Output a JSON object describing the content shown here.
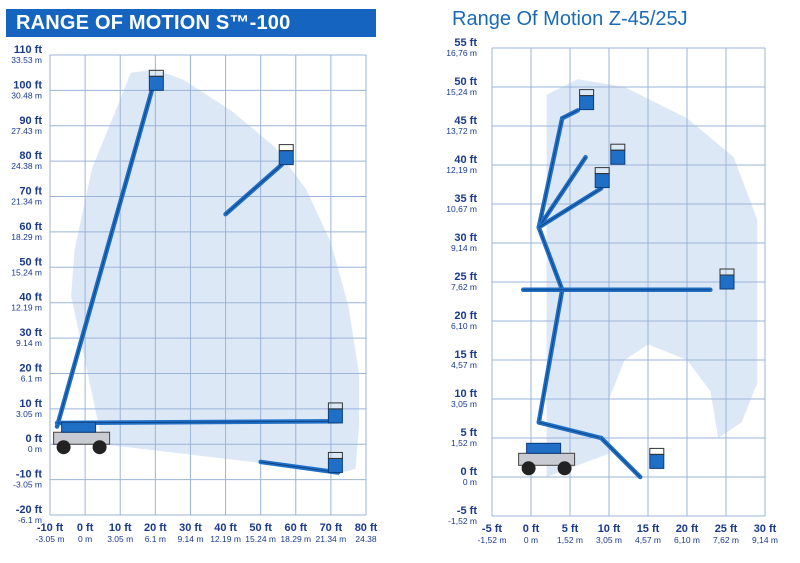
{
  "left_chart": {
    "title": "RANGE OF MOTION S™-100",
    "y_ticks": [
      {
        "ft": "110 ft",
        "m": "33.53 m"
      },
      {
        "ft": "100 ft",
        "m": "30.48 m"
      },
      {
        "ft": "90 ft",
        "m": "27.43 m"
      },
      {
        "ft": "80 ft",
        "m": "24.38 m"
      },
      {
        "ft": "70 ft",
        "m": "21.34 m"
      },
      {
        "ft": "60 ft",
        "m": "18.29 m"
      },
      {
        "ft": "50 ft",
        "m": "15.24 m"
      },
      {
        "ft": "40 ft",
        "m": "12.19 m"
      },
      {
        "ft": "30 ft",
        "m": "9.14 m"
      },
      {
        "ft": "20 ft",
        "m": "6.1 m"
      },
      {
        "ft": "10 ft",
        "m": "3.05 m"
      },
      {
        "ft": "0 ft",
        "m": "0 m"
      },
      {
        "ft": "-10 ft",
        "m": "-3.05 m"
      },
      {
        "ft": "-20 ft",
        "m": "-6.1 m"
      }
    ],
    "x_ticks": [
      {
        "ft": "-10 ft",
        "m": "-3.05 m"
      },
      {
        "ft": "0 ft",
        "m": "0 m"
      },
      {
        "ft": "10 ft",
        "m": "3.05 m"
      },
      {
        "ft": "20 ft",
        "m": "6.1 m"
      },
      {
        "ft": "30 ft",
        "m": "9.14 m"
      },
      {
        "ft": "40 ft",
        "m": "12.19 m"
      },
      {
        "ft": "50 ft",
        "m": "15.24 m"
      },
      {
        "ft": "60 ft",
        "m": "18.29 m"
      },
      {
        "ft": "70 ft",
        "m": "21.34 m"
      },
      {
        "ft": "80 ft",
        "m": "24.38"
      }
    ],
    "envelope_points_ft": [
      [
        5,
        0
      ],
      [
        -4,
        42
      ],
      [
        -3,
        55
      ],
      [
        2,
        78
      ],
      [
        9,
        95
      ],
      [
        13,
        105
      ],
      [
        20,
        106
      ],
      [
        28,
        103
      ],
      [
        42,
        94
      ],
      [
        54,
        84
      ],
      [
        63,
        72
      ],
      [
        70,
        57
      ],
      [
        75,
        39
      ],
      [
        78,
        20
      ],
      [
        78,
        5
      ],
      [
        77,
        -7
      ],
      [
        73,
        -8
      ]
    ],
    "booms_ft": [
      {
        "from": [
          -8,
          5
        ],
        "to": [
          19,
          100
        ]
      },
      {
        "from": [
          -8,
          6
        ],
        "to": [
          72,
          6.5
        ]
      },
      {
        "from": [
          50,
          -5
        ],
        "to": [
          72,
          -8
        ]
      },
      {
        "from": [
          40,
          65
        ],
        "to": [
          56,
          79
        ]
      }
    ],
    "platforms_ft": [
      [
        20,
        102
      ],
      [
        57,
        81
      ],
      [
        71,
        8
      ],
      [
        71,
        -6
      ]
    ],
    "colors": {
      "envelope": "#dde8f7",
      "boom": "#1f6fc6",
      "grid": "#9bb4d8",
      "axis_text": "#1a3a8c"
    }
  },
  "right_chart": {
    "title": "Range Of Motion Z-45/25J",
    "y_ticks": [
      {
        "ft": "55 ft",
        "m": "16,76 m"
      },
      {
        "ft": "50 ft",
        "m": "15,24 m"
      },
      {
        "ft": "45 ft",
        "m": "13,72 m"
      },
      {
        "ft": "40 ft",
        "m": "12,19 m"
      },
      {
        "ft": "35 ft",
        "m": "10,67 m"
      },
      {
        "ft": "30 ft",
        "m": "9,14 m"
      },
      {
        "ft": "25 ft",
        "m": "7,62 m"
      },
      {
        "ft": "20 ft",
        "m": "6,10 m"
      },
      {
        "ft": "15 ft",
        "m": "4,57 m"
      },
      {
        "ft": "10 ft",
        "m": "3,05 m"
      },
      {
        "ft": "5 ft",
        "m": "1,52 m"
      },
      {
        "ft": "0 ft",
        "m": "0 m"
      },
      {
        "ft": "-5 ft",
        "m": "-1,52 m"
      }
    ],
    "x_ticks": [
      {
        "ft": "-5 ft",
        "m": "-1,52 m"
      },
      {
        "ft": "0 ft",
        "m": "0 m"
      },
      {
        "ft": "5 ft",
        "m": "1,52 m"
      },
      {
        "ft": "10 ft",
        "m": "3,05 m"
      },
      {
        "ft": "15 ft",
        "m": "4,57 m"
      },
      {
        "ft": "20 ft",
        "m": "6,10 m"
      },
      {
        "ft": "25 ft",
        "m": "7,62 m"
      },
      {
        "ft": "30 ft",
        "m": "9,14 m"
      }
    ],
    "envelope_points_ft": [
      [
        2,
        0
      ],
      [
        2,
        49
      ],
      [
        6,
        51
      ],
      [
        12,
        50
      ],
      [
        20,
        46
      ],
      [
        26,
        41
      ],
      [
        29,
        33
      ],
      [
        29,
        12
      ],
      [
        27,
        7
      ],
      [
        24,
        5
      ],
      [
        23,
        11
      ],
      [
        20,
        15
      ],
      [
        15,
        17
      ],
      [
        12,
        15
      ],
      [
        10,
        10
      ],
      [
        10,
        3
      ]
    ],
    "booms_ft": [
      {
        "from": [
          1,
          7
        ],
        "to": [
          4,
          24
        ]
      },
      {
        "from": [
          4,
          24
        ],
        "to": [
          1,
          32
        ]
      },
      {
        "from": [
          1,
          32
        ],
        "to": [
          4,
          46
        ]
      },
      {
        "from": [
          4,
          46
        ],
        "to": [
          6,
          47
        ]
      },
      {
        "from": [
          1,
          32
        ],
        "to": [
          7,
          41
        ]
      },
      {
        "from": [
          1,
          32
        ],
        "to": [
          9,
          37
        ]
      },
      {
        "from": [
          -1,
          24
        ],
        "to": [
          23,
          24
        ]
      },
      {
        "from": [
          1,
          7
        ],
        "to": [
          9,
          5
        ]
      },
      {
        "from": [
          9,
          5
        ],
        "to": [
          14,
          0
        ]
      }
    ],
    "platforms_ft": [
      [
        7,
        48
      ],
      [
        11,
        41
      ],
      [
        9,
        38
      ],
      [
        25,
        25
      ],
      [
        16,
        2
      ]
    ],
    "colors": {
      "envelope": "#dde8f7",
      "boom": "#1f6fc6",
      "grid": "#9bb4d8",
      "axis_text": "#1a3a8c"
    }
  }
}
